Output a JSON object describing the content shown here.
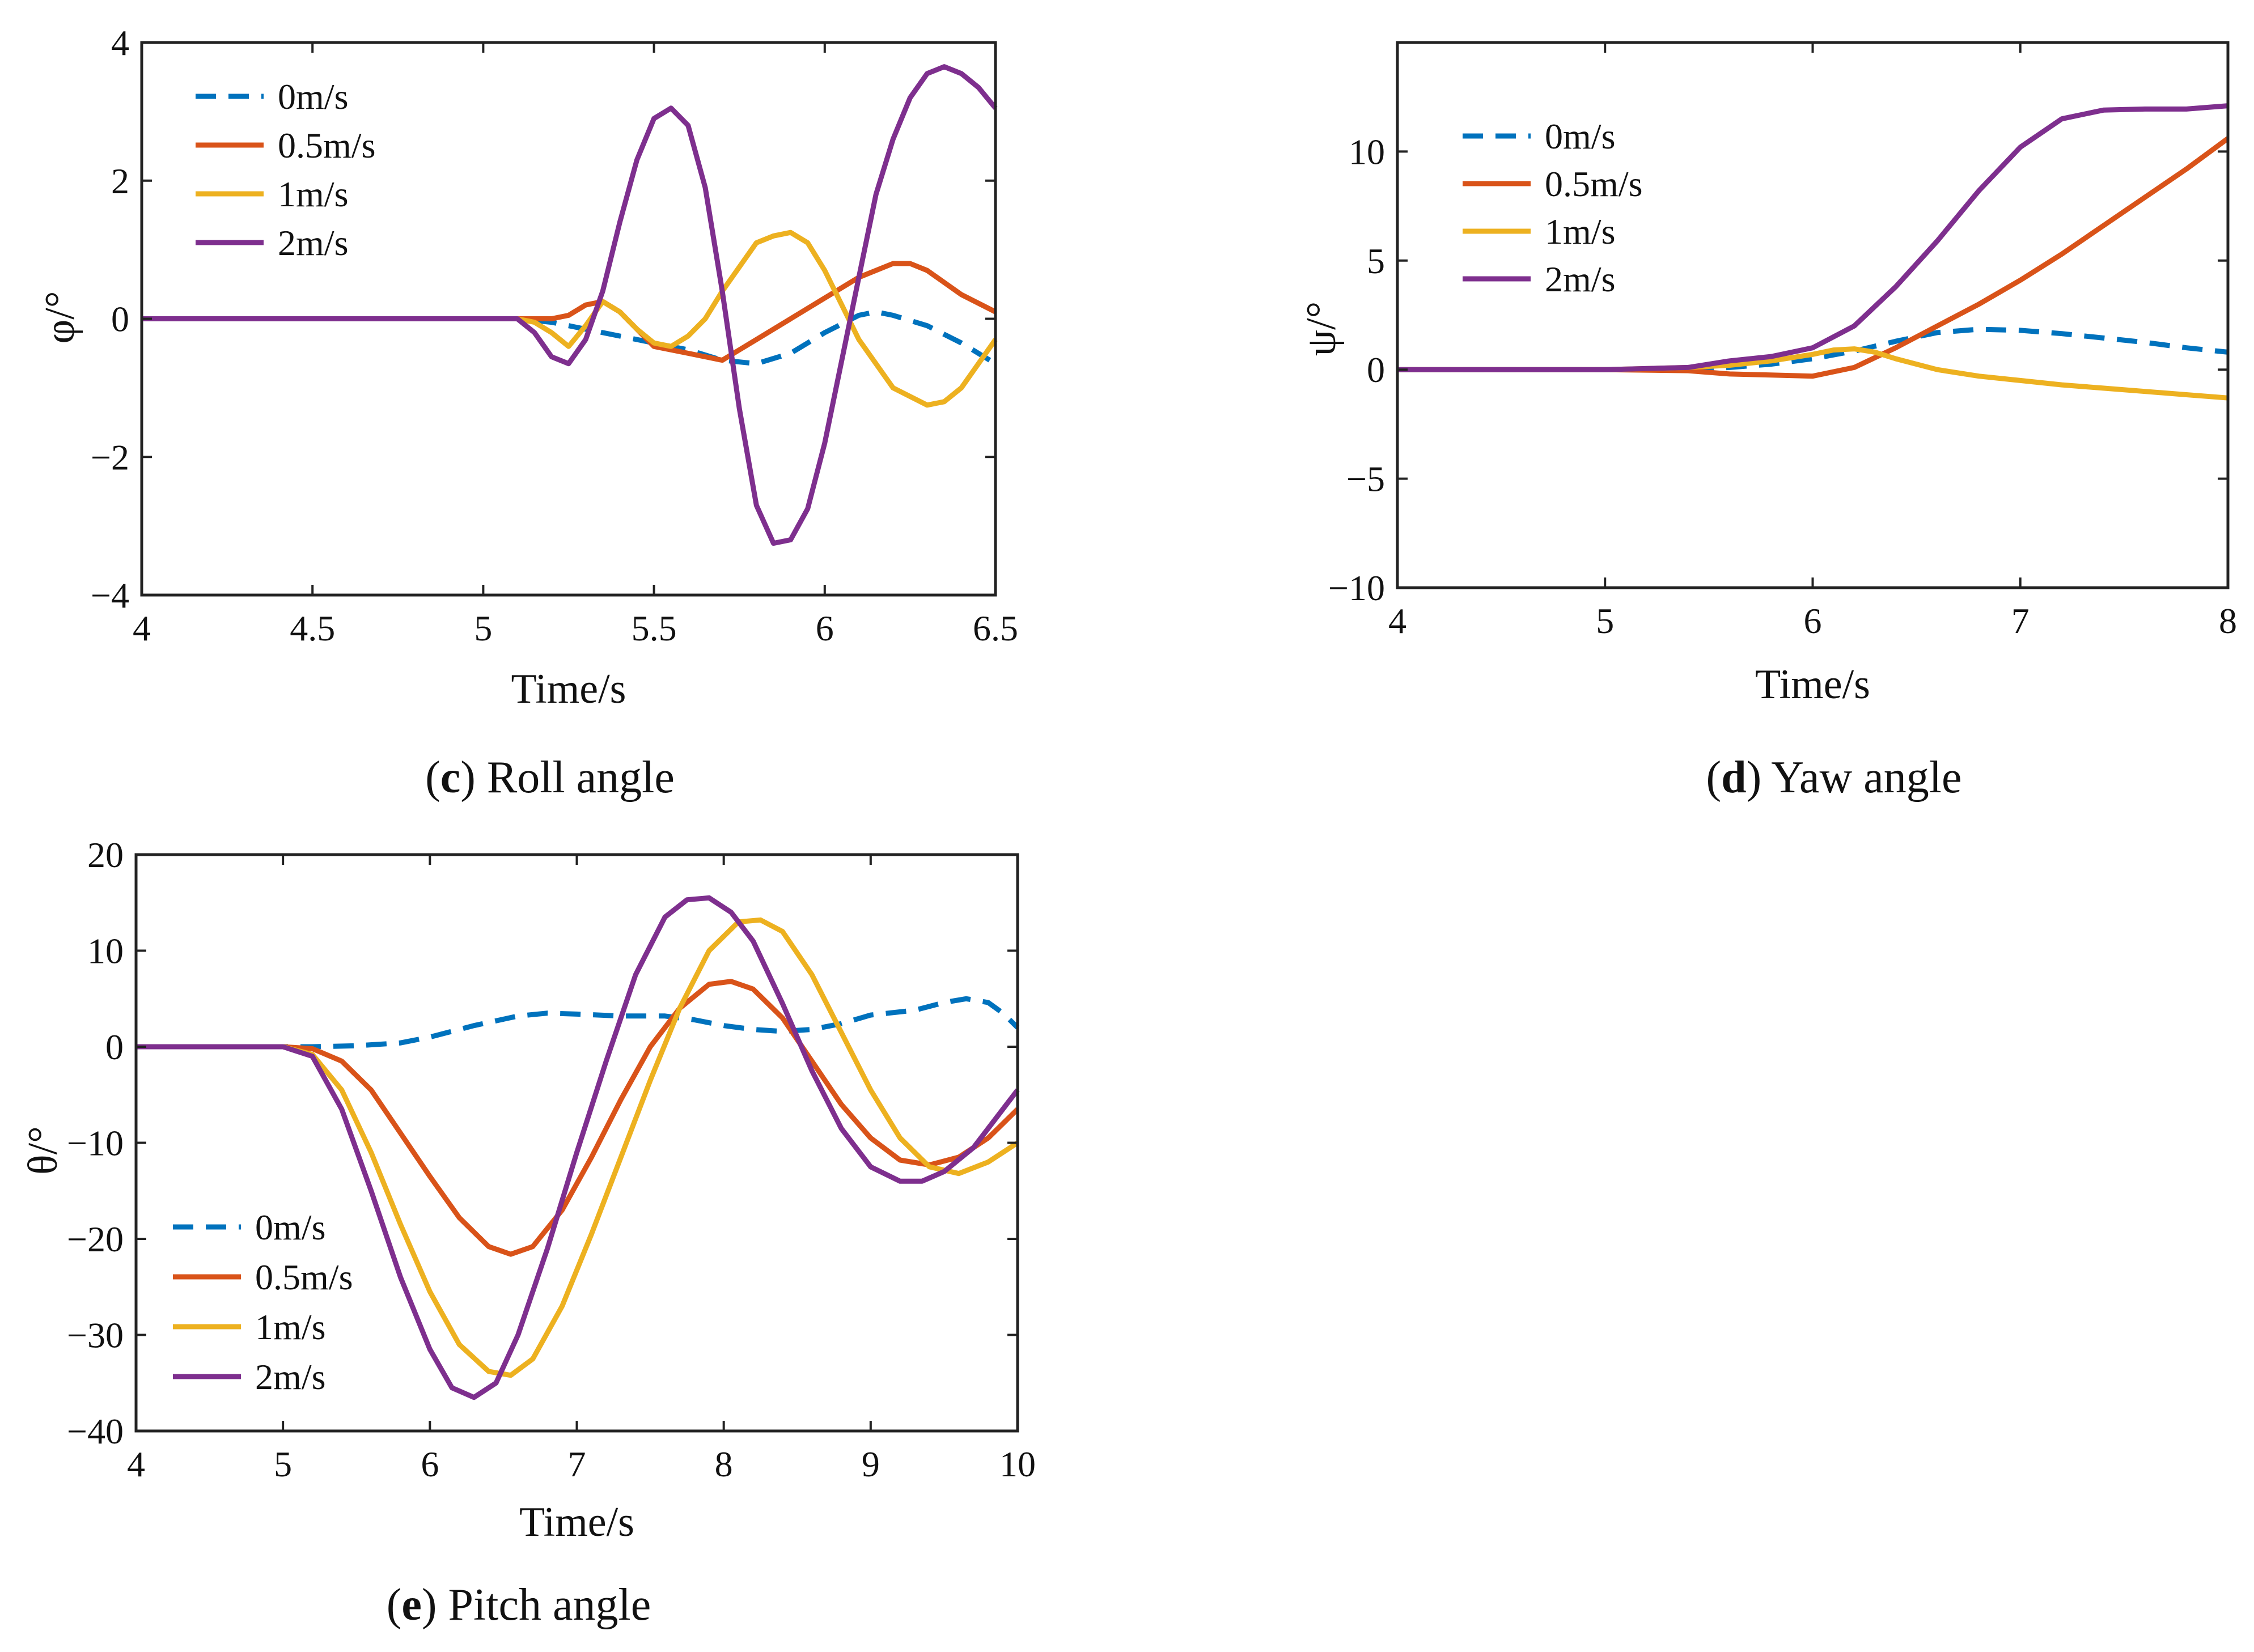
{
  "chart_data": [
    {
      "id": "c",
      "type": "line",
      "title": "",
      "caption": {
        "letter": "c",
        "before": "(",
        "after": ") Roll angle"
      },
      "xlabel": "Time/s",
      "ylabel": "φ/°",
      "xlim": [
        4,
        6.5
      ],
      "ylim": [
        -4,
        4
      ],
      "xticks": [
        4,
        4.5,
        5,
        5.5,
        6,
        6.5
      ],
      "xtick_labels": [
        "4",
        "4.5",
        "5",
        "5.5",
        "6",
        "6.5"
      ],
      "yticks": [
        -4,
        -2,
        0,
        2,
        4
      ],
      "ytick_labels": [
        "−4",
        "−2",
        "0",
        "2",
        "4"
      ],
      "grid": false,
      "legend_position": "top-left",
      "series": [
        {
          "name": "0m/s",
          "color": "#0072BD",
          "dash": "dashed",
          "x": [
            4,
            5.0,
            5.1,
            5.2,
            5.3,
            5.4,
            5.5,
            5.6,
            5.7,
            5.8,
            5.9,
            6.0,
            6.1,
            6.15,
            6.2,
            6.3,
            6.4,
            6.5
          ],
          "y": [
            0,
            0,
            0,
            -0.05,
            -0.15,
            -0.25,
            -0.35,
            -0.45,
            -0.6,
            -0.65,
            -0.5,
            -0.2,
            0.05,
            0.1,
            0.05,
            -0.1,
            -0.35,
            -0.65
          ]
        },
        {
          "name": "0.5m/s",
          "color": "#D95319",
          "dash": "solid",
          "x": [
            4,
            5.0,
            5.1,
            5.2,
            5.25,
            5.3,
            5.35,
            5.4,
            5.45,
            5.5,
            5.6,
            5.7,
            5.75,
            5.8,
            5.9,
            6.0,
            6.1,
            6.2,
            6.25,
            6.3,
            6.4,
            6.5
          ],
          "y": [
            0,
            0,
            0,
            0.0,
            0.05,
            0.2,
            0.25,
            0.1,
            -0.15,
            -0.4,
            -0.5,
            -0.6,
            -0.45,
            -0.3,
            0.0,
            0.3,
            0.6,
            0.8,
            0.8,
            0.7,
            0.35,
            0.1
          ]
        },
        {
          "name": "1m/s",
          "color": "#EDB120",
          "dash": "solid",
          "x": [
            4,
            5.0,
            5.1,
            5.15,
            5.2,
            5.25,
            5.3,
            5.35,
            5.4,
            5.45,
            5.5,
            5.55,
            5.6,
            5.65,
            5.7,
            5.8,
            5.85,
            5.9,
            5.95,
            6.0,
            6.05,
            6.1,
            6.2,
            6.3,
            6.35,
            6.4,
            6.5
          ],
          "y": [
            0,
            0,
            0,
            -0.05,
            -0.2,
            -0.4,
            -0.1,
            0.25,
            0.1,
            -0.15,
            -0.35,
            -0.4,
            -0.25,
            0.0,
            0.4,
            1.1,
            1.2,
            1.25,
            1.1,
            0.7,
            0.2,
            -0.3,
            -1.0,
            -1.25,
            -1.2,
            -1.0,
            -0.3
          ]
        },
        {
          "name": "2m/s",
          "color": "#7E2F8E",
          "dash": "solid",
          "x": [
            4,
            5.0,
            5.1,
            5.15,
            5.2,
            5.25,
            5.3,
            5.35,
            5.4,
            5.45,
            5.5,
            5.55,
            5.6,
            5.65,
            5.7,
            5.75,
            5.8,
            5.85,
            5.9,
            5.95,
            6.0,
            6.05,
            6.1,
            6.15,
            6.2,
            6.25,
            6.3,
            6.35,
            6.4,
            6.45,
            6.5
          ],
          "y": [
            0,
            0,
            0,
            -0.2,
            -0.55,
            -0.65,
            -0.3,
            0.4,
            1.4,
            2.3,
            2.9,
            3.05,
            2.8,
            1.9,
            0.4,
            -1.3,
            -2.7,
            -3.25,
            -3.2,
            -2.75,
            -1.8,
            -0.6,
            0.6,
            1.8,
            2.6,
            3.2,
            3.55,
            3.65,
            3.55,
            3.35,
            3.05
          ]
        }
      ]
    },
    {
      "id": "d",
      "type": "line",
      "title": "",
      "caption": {
        "letter": "d",
        "before": "(",
        "after": ") Yaw angle"
      },
      "xlabel": "Time/s",
      "ylabel": "ψ/°",
      "xlim": [
        4,
        8
      ],
      "ylim": [
        -10,
        15
      ],
      "xticks": [
        4,
        5,
        6,
        7,
        8
      ],
      "xtick_labels": [
        "4",
        "5",
        "6",
        "7",
        "8"
      ],
      "yticks": [
        -10,
        -5,
        0,
        5,
        10
      ],
      "ytick_labels": [
        "−10",
        "−5",
        "0",
        "5",
        "10"
      ],
      "grid": false,
      "legend_position": "top-left",
      "series": [
        {
          "name": "0m/s",
          "color": "#0072BD",
          "dash": "dashed",
          "x": [
            4,
            5.0,
            5.4,
            5.6,
            5.8,
            6.0,
            6.2,
            6.4,
            6.6,
            6.8,
            7.0,
            7.2,
            7.4,
            7.6,
            7.8,
            8.0
          ],
          "y": [
            0,
            0,
            0,
            0.1,
            0.25,
            0.5,
            0.85,
            1.3,
            1.7,
            1.85,
            1.8,
            1.65,
            1.45,
            1.25,
            1.0,
            0.8
          ]
        },
        {
          "name": "0.5m/s",
          "color": "#D95319",
          "dash": "solid",
          "x": [
            4,
            5.0,
            5.4,
            5.6,
            5.8,
            6.0,
            6.2,
            6.4,
            6.6,
            6.8,
            7.0,
            7.2,
            7.4,
            7.6,
            7.8,
            8.0
          ],
          "y": [
            0,
            0,
            -0.05,
            -0.2,
            -0.25,
            -0.3,
            0.1,
            1.0,
            2.0,
            3.0,
            4.1,
            5.3,
            6.6,
            7.9,
            9.2,
            10.6
          ]
        },
        {
          "name": "1m/s",
          "color": "#EDB120",
          "dash": "solid",
          "x": [
            4,
            5.0,
            5.4,
            5.6,
            5.8,
            6.0,
            6.1,
            6.2,
            6.3,
            6.4,
            6.6,
            6.8,
            7.0,
            7.2,
            7.4,
            7.6,
            7.8,
            8.0
          ],
          "y": [
            0,
            0,
            0.1,
            0.2,
            0.4,
            0.7,
            0.9,
            0.95,
            0.8,
            0.5,
            0.0,
            -0.3,
            -0.5,
            -0.7,
            -0.85,
            -1.0,
            -1.15,
            -1.3
          ]
        },
        {
          "name": "2m/s",
          "color": "#7E2F8E",
          "dash": "solid",
          "x": [
            4,
            5.0,
            5.4,
            5.6,
            5.8,
            6.0,
            6.2,
            6.4,
            6.6,
            6.8,
            7.0,
            7.2,
            7.4,
            7.6,
            7.8,
            8.0
          ],
          "y": [
            0,
            0,
            0.1,
            0.4,
            0.6,
            1.0,
            2.0,
            3.8,
            5.9,
            8.2,
            10.2,
            11.5,
            11.9,
            11.95,
            11.95,
            12.1
          ]
        }
      ]
    },
    {
      "id": "e",
      "type": "line",
      "title": "",
      "caption": {
        "letter": "e",
        "before": "(",
        "after": ") Pitch angle"
      },
      "xlabel": "Time/s",
      "ylabel": "θ/°",
      "xlim": [
        4,
        10
      ],
      "ylim": [
        -40,
        20
      ],
      "xticks": [
        4,
        5,
        6,
        7,
        8,
        9,
        10
      ],
      "xtick_labels": [
        "4",
        "5",
        "6",
        "7",
        "8",
        "9",
        "10"
      ],
      "yticks": [
        -40,
        -30,
        -20,
        -10,
        0,
        10,
        20
      ],
      "ytick_labels": [
        "−40",
        "−30",
        "−20",
        "−10",
        "0",
        "10",
        "20"
      ],
      "grid": false,
      "legend_position": "bottom-left",
      "series": [
        {
          "name": "0m/s",
          "color": "#0072BD",
          "dash": "dashed",
          "x": [
            4,
            5.0,
            5.2,
            5.5,
            5.8,
            6.0,
            6.3,
            6.6,
            6.8,
            7.0,
            7.3,
            7.6,
            7.8,
            8.0,
            8.2,
            8.4,
            8.6,
            8.8,
            9.0,
            9.3,
            9.5,
            9.65,
            9.8,
            9.9,
            10.0
          ],
          "y": [
            0,
            0,
            0,
            0.1,
            0.4,
            1.0,
            2.2,
            3.2,
            3.5,
            3.4,
            3.2,
            3.2,
            2.8,
            2.2,
            1.8,
            1.6,
            1.8,
            2.4,
            3.3,
            3.8,
            4.6,
            5.0,
            4.6,
            3.5,
            2.0
          ]
        },
        {
          "name": "0.5m/s",
          "color": "#D95319",
          "dash": "solid",
          "x": [
            4,
            5.0,
            5.2,
            5.4,
            5.6,
            5.8,
            6.0,
            6.2,
            6.4,
            6.55,
            6.7,
            6.9,
            7.1,
            7.3,
            7.5,
            7.7,
            7.9,
            8.05,
            8.2,
            8.4,
            8.6,
            8.8,
            9.0,
            9.2,
            9.4,
            9.6,
            9.8,
            10.0
          ],
          "y": [
            0,
            0,
            -0.2,
            -1.5,
            -4.5,
            -9.0,
            -13.5,
            -17.8,
            -20.8,
            -21.6,
            -20.8,
            -17.0,
            -11.5,
            -5.5,
            0.0,
            4.0,
            6.5,
            6.8,
            6.0,
            3.0,
            -1.5,
            -6.0,
            -9.5,
            -11.8,
            -12.3,
            -11.5,
            -9.5,
            -6.5
          ]
        },
        {
          "name": "1m/s",
          "color": "#EDB120",
          "dash": "solid",
          "x": [
            4,
            5.0,
            5.2,
            5.4,
            5.6,
            5.8,
            6.0,
            6.2,
            6.4,
            6.55,
            6.7,
            6.9,
            7.1,
            7.3,
            7.5,
            7.7,
            7.9,
            8.1,
            8.25,
            8.4,
            8.6,
            8.8,
            9.0,
            9.2,
            9.4,
            9.6,
            9.8,
            10.0
          ],
          "y": [
            0,
            0,
            -0.8,
            -4.5,
            -11.0,
            -18.5,
            -25.5,
            -31.0,
            -33.8,
            -34.2,
            -32.5,
            -27.0,
            -19.5,
            -11.5,
            -3.5,
            4.0,
            10.0,
            13.0,
            13.2,
            12.0,
            7.5,
            1.5,
            -4.5,
            -9.5,
            -12.5,
            -13.2,
            -12.0,
            -10.0
          ]
        },
        {
          "name": "2m/s",
          "color": "#7E2F8E",
          "dash": "solid",
          "x": [
            4,
            5.0,
            5.2,
            5.4,
            5.6,
            5.8,
            6.0,
            6.15,
            6.3,
            6.45,
            6.6,
            6.8,
            7.0,
            7.2,
            7.4,
            7.6,
            7.75,
            7.9,
            8.05,
            8.2,
            8.4,
            8.6,
            8.8,
            9.0,
            9.2,
            9.35,
            9.5,
            9.7,
            9.85,
            10.0
          ],
          "y": [
            0,
            0,
            -1.0,
            -6.5,
            -15.0,
            -24.0,
            -31.5,
            -35.5,
            -36.5,
            -35.0,
            -30.0,
            -21.0,
            -11.0,
            -1.5,
            7.5,
            13.5,
            15.3,
            15.5,
            14.0,
            11.0,
            4.5,
            -2.5,
            -8.5,
            -12.5,
            -14.0,
            -14.0,
            -13.0,
            -10.5,
            -7.5,
            -4.5
          ]
        }
      ]
    }
  ]
}
